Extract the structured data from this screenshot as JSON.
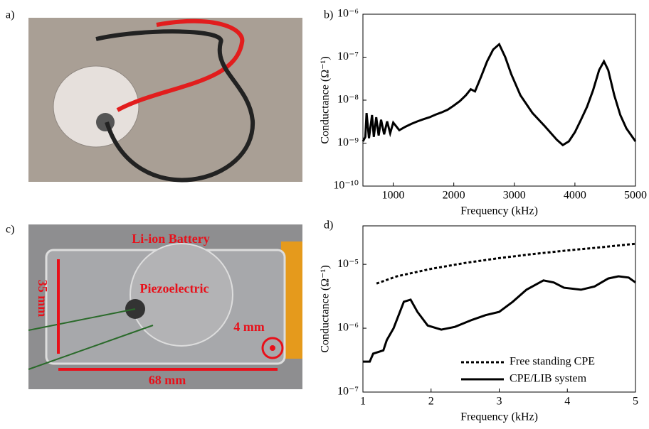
{
  "panels": [
    "a)",
    "b)",
    "c)",
    "d)"
  ],
  "photo_labels": {
    "battery": "Li-ion Battery",
    "piezo": "Piezoelectric",
    "height": "35 mm",
    "hole": "4 mm",
    "width": "68 mm"
  },
  "chart_data": [
    {
      "type": "line",
      "x_label": "Frequency (kHz)",
      "y_label": "Conductance (Ω⁻¹)",
      "log_y": true,
      "box": true,
      "xlim": [
        500,
        5000
      ],
      "xticks": [
        1000,
        2000,
        3000,
        4000,
        5000
      ],
      "ylim": [
        1e-10,
        1e-06
      ],
      "yticks": [
        {
          "value": 1e-10,
          "label": "10⁻¹⁰"
        },
        {
          "value": 1e-09,
          "label": "10⁻⁹"
        },
        {
          "value": 1e-08,
          "label": "10⁻⁸"
        },
        {
          "value": 1e-07,
          "label": "10⁻⁷"
        },
        {
          "value": 1e-06,
          "label": "10⁻⁶"
        }
      ],
      "series": [
        {
          "color": "#000000",
          "dash": "solid",
          "x": [
            500,
            540,
            560,
            600,
            650,
            680,
            720,
            760,
            800,
            850,
            900,
            950,
            1000,
            1100,
            1200,
            1300,
            1400,
            1500,
            1600,
            1700,
            1800,
            1900,
            2000,
            2100,
            2200,
            2280,
            2350,
            2450,
            2550,
            2650,
            2750,
            2850,
            2950,
            3100,
            3300,
            3500,
            3700,
            3800,
            3900,
            4000,
            4100,
            4200,
            4300,
            4400,
            4480,
            4550,
            4650,
            4750,
            4850,
            5000
          ],
          "values": [
            1.1e-09,
            1.4e-09,
            5e-09,
            1.3e-09,
            4.5e-09,
            1.4e-09,
            4e-09,
            1.5e-09,
            3.5e-09,
            1.6e-09,
            3.2e-09,
            1.7e-09,
            3e-09,
            2e-09,
            2.4e-09,
            2.8e-09,
            3.2e-09,
            3.6e-09,
            4e-09,
            4.6e-09,
            5.2e-09,
            6e-09,
            7.5e-09,
            9.5e-09,
            1.3e-08,
            1.8e-08,
            1.6e-08,
            3.5e-08,
            8e-08,
            1.5e-07,
            2e-07,
            1e-07,
            4e-08,
            1.3e-08,
            5e-09,
            2.5e-09,
            1.2e-09,
            9e-10,
            1.1e-09,
            1.8e-09,
            3.5e-09,
            7e-09,
            1.7e-08,
            5e-08,
            8e-08,
            5e-08,
            1.3e-08,
            4.5e-09,
            2.2e-09,
            1.1e-09
          ]
        }
      ]
    },
    {
      "type": "line",
      "x_label": "Frequency (kHz)",
      "y_label": "Conductance (Ω⁻¹)",
      "log_y": true,
      "box": true,
      "legend": "lower right",
      "xlim": [
        1,
        5
      ],
      "xticks": [
        1,
        2,
        3,
        4,
        5
      ],
      "ylim": [
        1e-07,
        4e-05
      ],
      "yticks": [
        {
          "value": 1e-07,
          "label": "10⁻⁷"
        },
        {
          "value": 1e-06,
          "label": "10⁻⁶"
        },
        {
          "value": 1e-05,
          "label": "10⁻⁵"
        }
      ],
      "series": [
        {
          "name": "Free standing CPE",
          "color": "#000000",
          "dash": "dotted",
          "x": [
            1.2,
            1.5,
            2,
            2.5,
            3,
            3.5,
            4,
            4.5,
            5
          ],
          "values": [
            5e-06,
            6.5e-06,
            8.5e-06,
            1.05e-05,
            1.25e-05,
            1.45e-05,
            1.65e-05,
            1.85e-05,
            2.1e-05
          ]
        },
        {
          "name": "CPE/LIB system",
          "color": "#000000",
          "dash": "solid",
          "x": [
            1,
            1.1,
            1.15,
            1.3,
            1.35,
            1.45,
            1.6,
            1.7,
            1.8,
            1.95,
            2.15,
            2.35,
            2.6,
            2.8,
            3,
            3.2,
            3.4,
            3.65,
            3.8,
            3.95,
            4.2,
            4.4,
            4.6,
            4.75,
            4.9,
            5
          ],
          "values": [
            3e-07,
            3e-07,
            4e-07,
            4.5e-07,
            6.5e-07,
            1e-06,
            2.6e-06,
            2.8e-06,
            1.8e-06,
            1.1e-06,
            9.5e-07,
            1.05e-06,
            1.35e-06,
            1.6e-06,
            1.8e-06,
            2.6e-06,
            4e-06,
            5.6e-06,
            5.2e-06,
            4.3e-06,
            4e-06,
            4.5e-06,
            6e-06,
            6.5e-06,
            6.2e-06,
            5.2e-06
          ]
        }
      ]
    }
  ]
}
